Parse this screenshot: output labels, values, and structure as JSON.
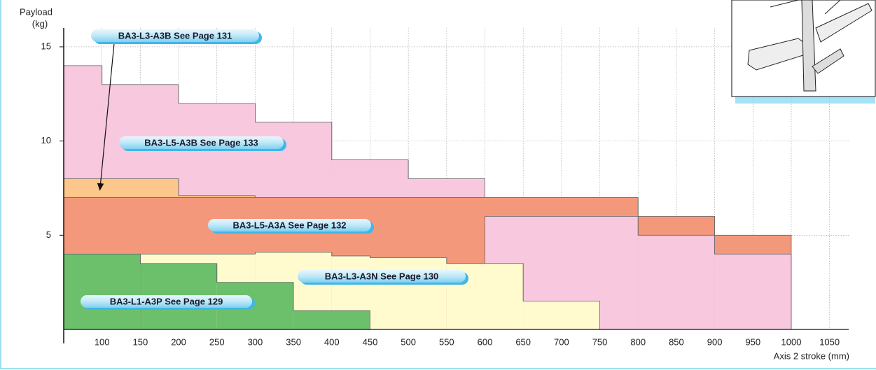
{
  "chart_data": {
    "type": "step-area",
    "ylabel": [
      "Payload",
      "(kg)"
    ],
    "xlabel": "Axis 2 stroke (mm)",
    "xlim": [
      50,
      1075
    ],
    "xticks": [
      100,
      150,
      200,
      250,
      300,
      350,
      400,
      450,
      500,
      550,
      600,
      650,
      700,
      750,
      800,
      850,
      900,
      950,
      1000,
      1050
    ],
    "ylim": [
      0,
      16
    ],
    "yticks": [
      5,
      10,
      15
    ],
    "grid": true,
    "series": [
      {
        "name": "BA3-L5-A3B See Page 133",
        "color": "#f7c8de",
        "bins": [
          50,
          100,
          200,
          300,
          400,
          500,
          600
        ],
        "values": [
          14,
          13,
          12,
          11,
          9,
          8
        ]
      },
      {
        "name": "BA3-L3-A3B See Page 131",
        "color": "#fdc78b",
        "bins": [
          50,
          200,
          300
        ],
        "values": [
          8,
          7.1
        ]
      },
      {
        "name": "BA3-L5-A3A See Page 132",
        "color": "#f4987b",
        "bins": [
          50,
          800,
          900,
          1000
        ],
        "values": [
          7,
          6,
          5
        ]
      },
      {
        "color": "#f7c8de",
        "bins": [
          600,
          800,
          900,
          1000
        ],
        "values": [
          6,
          5,
          4
        ]
      },
      {
        "name": "BA3-L3-A3N See Page 130",
        "color": "#fffbcf",
        "bins": [
          150,
          300,
          400,
          450,
          550,
          650,
          750
        ],
        "values": [
          4,
          4.1,
          3.9,
          3.8,
          3.5,
          1.5
        ]
      },
      {
        "name": "BA3-L1-A3P See Page 129",
        "color": "#6cc06c",
        "bins": [
          50,
          150,
          250,
          350,
          450
        ],
        "values": [
          4,
          3.5,
          2.5,
          1
        ]
      }
    ]
  }
}
